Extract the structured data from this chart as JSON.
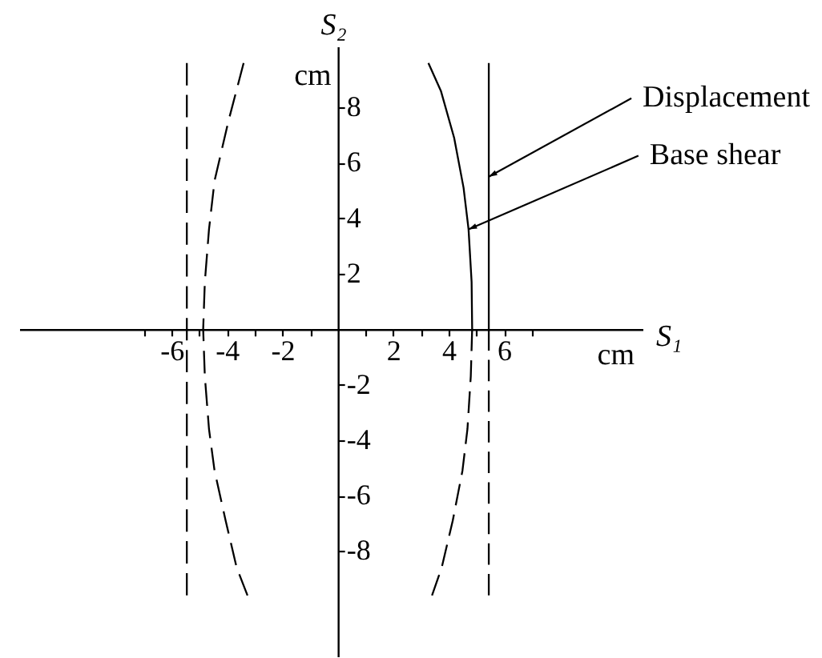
{
  "chart_data": {
    "type": "line",
    "xlabel": "S₁",
    "ylabel": "S₂",
    "xlim": [
      -11.5,
      11
    ],
    "ylim": [
      -11.8,
      10.2
    ],
    "xticks": [
      {
        "value": -7,
        "label": null
      },
      -6,
      {
        "value": -5,
        "label": null
      },
      -4,
      {
        "value": -3,
        "label": null
      },
      -2,
      {
        "value": -1,
        "label": null
      },
      {
        "value": 1,
        "label": null
      },
      2,
      {
        "value": 3,
        "label": null
      },
      4,
      {
        "value": 5,
        "label": null
      },
      6,
      {
        "value": 7,
        "label": null
      }
    ],
    "yticks": [
      -8,
      -6,
      -4,
      -2,
      2,
      4,
      6,
      8
    ],
    "series": [
      {
        "color": "#000000",
        "line_style": "solid",
        "x": [
          5.45,
          5.45
        ],
        "values": [
          0,
          9.6
        ]
      },
      {
        "color": "#000000",
        "line_style": "dashed",
        "x": [
          5.45,
          5.45
        ],
        "values": [
          0,
          -9.6
        ]
      },
      {
        "color": "#000000",
        "line_style": "dashed",
        "x": [
          -5.45,
          -5.45
        ],
        "values": [
          9.6,
          -9.6
        ]
      },
      {
        "color": "#000000",
        "line_style": "solid",
        "x": [
          4.85,
          4.83,
          4.72,
          4.54,
          4.2,
          3.72,
          3.27
        ],
        "values": [
          0,
          1.7,
          3.6,
          5.1,
          6.9,
          8.6,
          9.6
        ]
      },
      {
        "color": "#000000",
        "line_style": "dashed",
        "x": [
          4.85,
          4.8,
          4.68,
          4.5,
          4.15,
          3.75,
          3.4
        ],
        "values": [
          0,
          -1.7,
          -3.6,
          -5.1,
          -6.9,
          -8.6,
          -9.6
        ]
      },
      {
        "color": "#000000",
        "line_style": "dashed",
        "x": [
          -3.4,
          -3.95,
          -4.45,
          -4.65,
          -4.8,
          -4.86,
          -4.8,
          -4.65,
          -4.45,
          -4.05,
          -3.65,
          -3.26
        ],
        "values": [
          9.6,
          7.5,
          5.35,
          3.6,
          1.7,
          0,
          -1.7,
          -3.6,
          -5.1,
          -6.9,
          -8.6,
          -9.6
        ]
      }
    ],
    "annotations": [
      {
        "text": "Displacement",
        "x": 5.45,
        "y": 5.5
      },
      {
        "text": "Base shear",
        "x": 4.72,
        "y": 3.6
      },
      "cm",
      "cm"
    ]
  }
}
